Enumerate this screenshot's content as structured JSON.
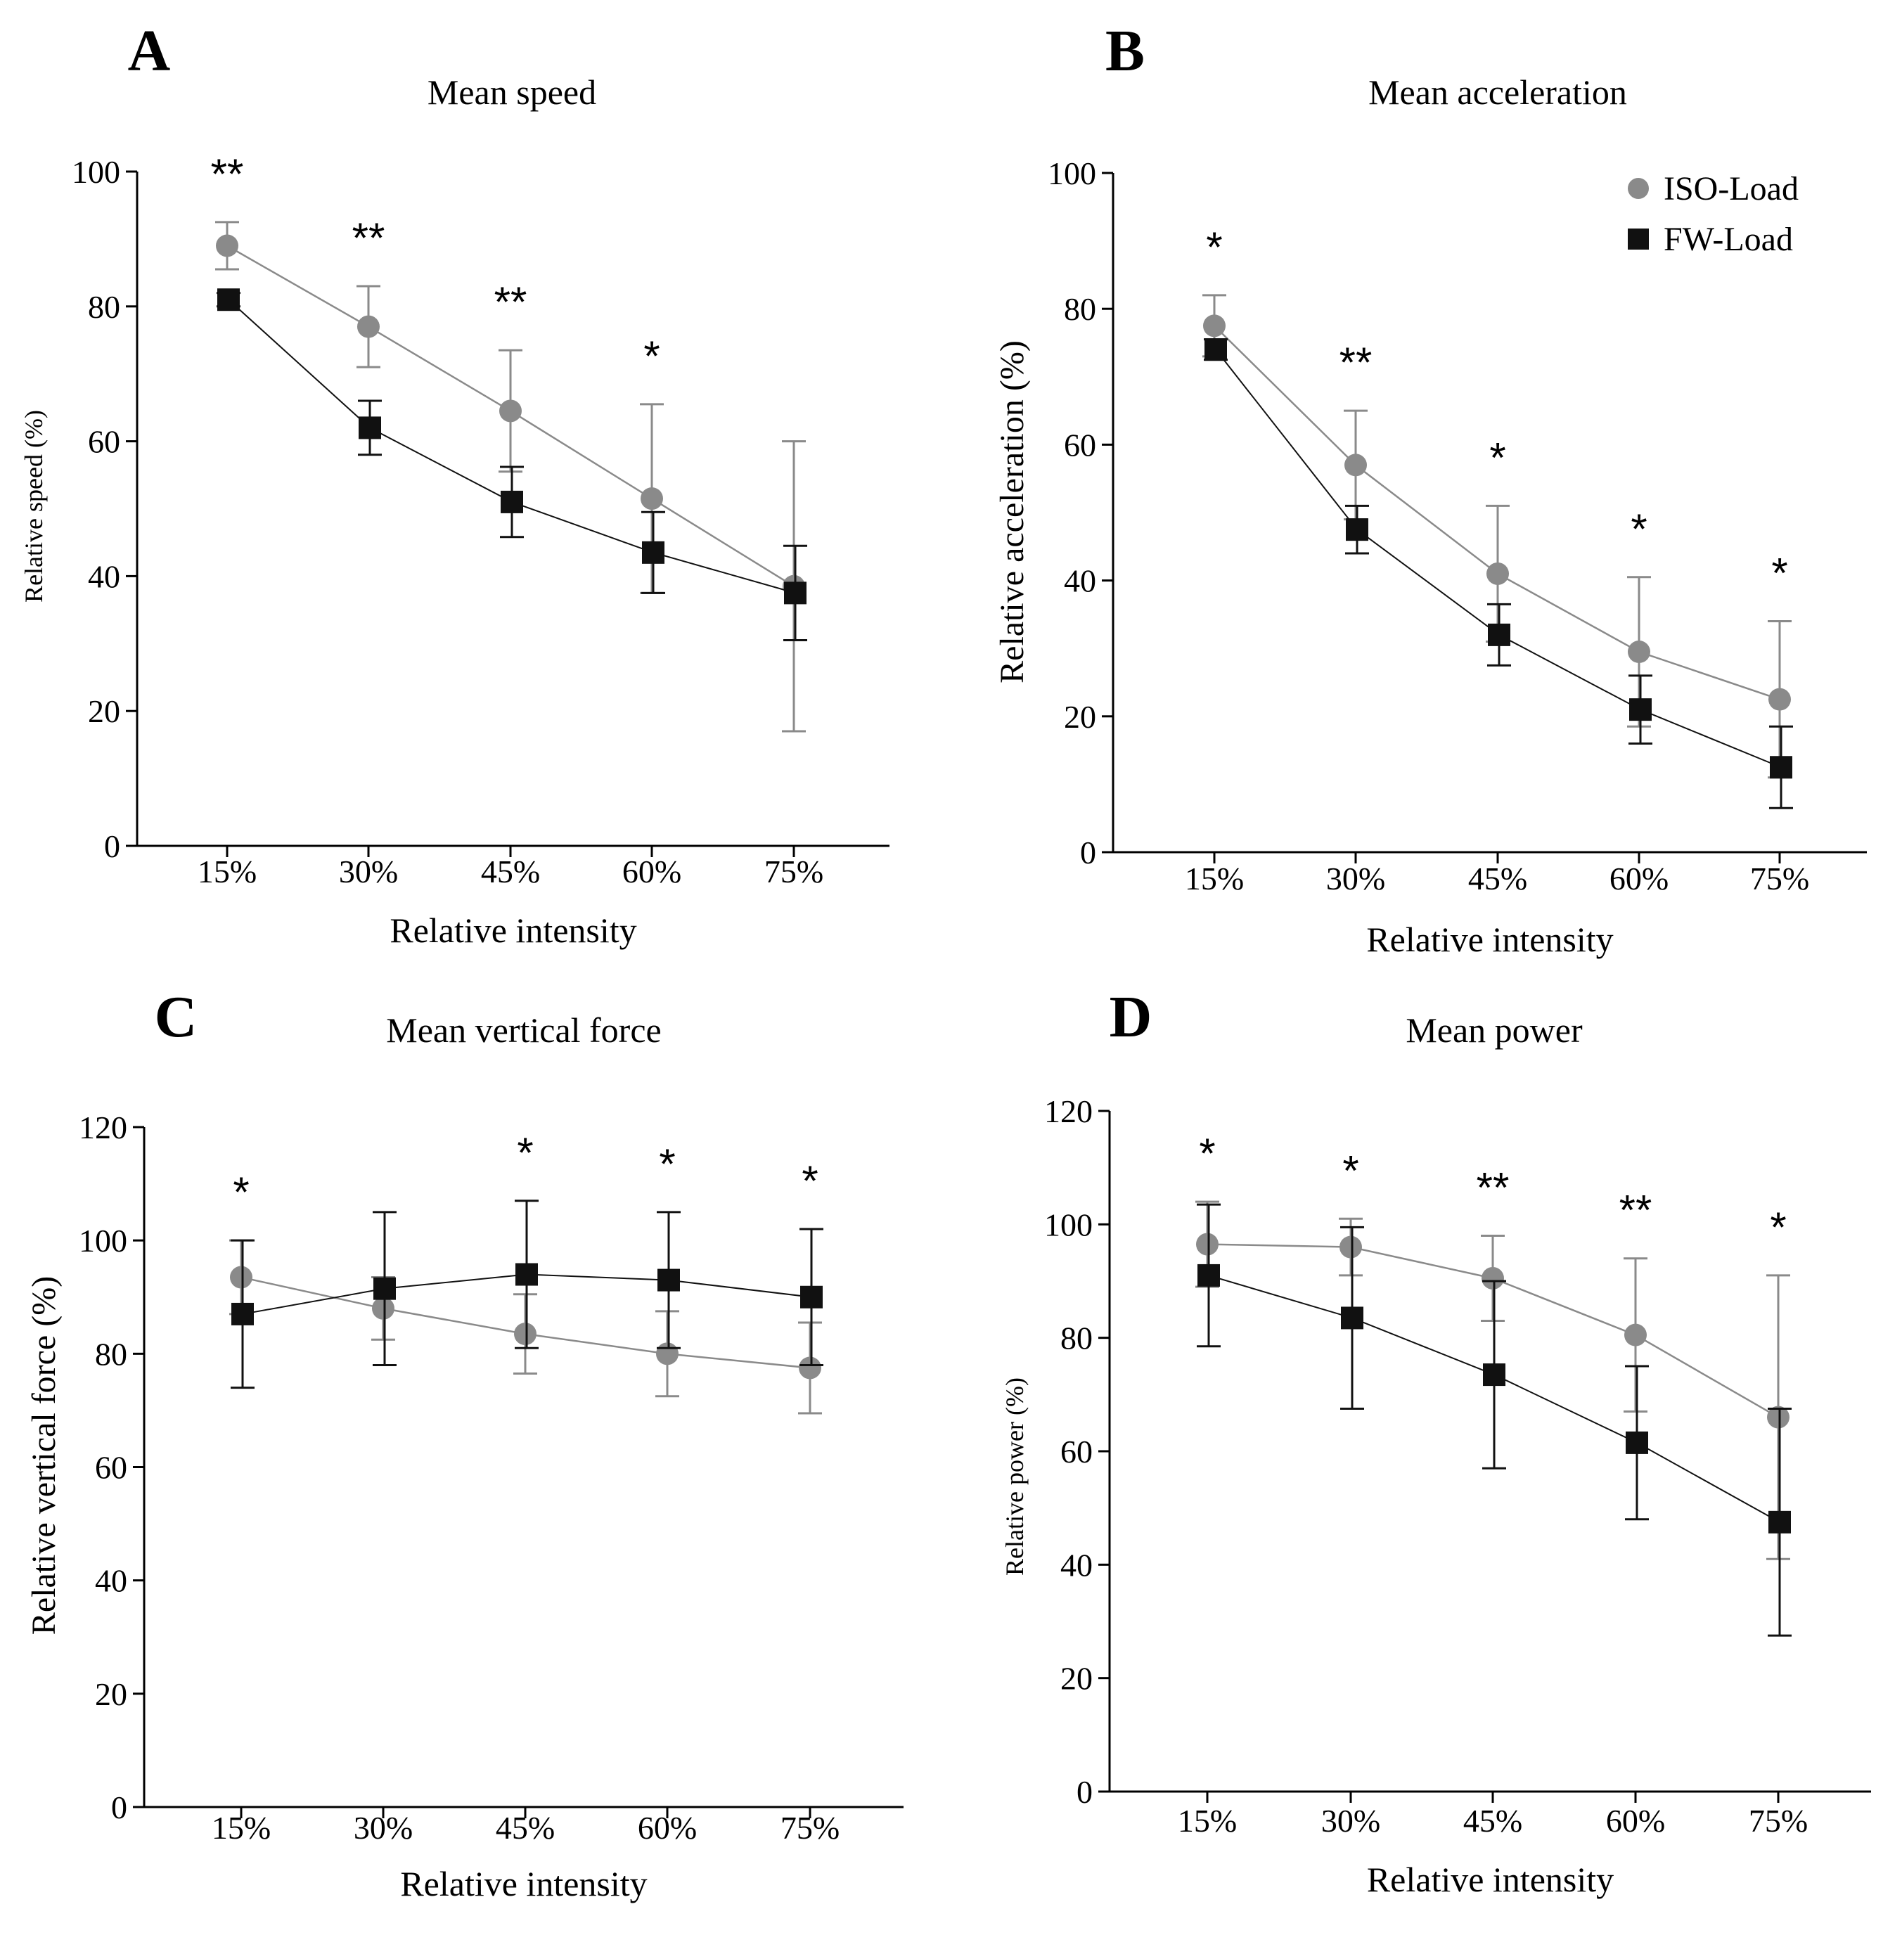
{
  "figure": {
    "legend": {
      "items": [
        "ISO-Load",
        "FW-Load"
      ]
    },
    "colors": {
      "iso": "#8a8a8a",
      "fw": "#111111",
      "axis": "#000000"
    }
  },
  "chart_data": [
    {
      "panel": "A",
      "type": "line",
      "title": "Mean speed",
      "xlabel": "Relative intensity",
      "ylabel": "Relative speed (%)",
      "categories": [
        "15%",
        "30%",
        "45%",
        "60%",
        "75%"
      ],
      "ylim": [
        0,
        100
      ],
      "yticks": [
        0,
        20,
        40,
        60,
        80,
        100
      ],
      "series": [
        {
          "name": "ISO-Load",
          "values": [
            89,
            77,
            64.5,
            51.5,
            38.5
          ],
          "err": [
            3.5,
            6,
            9,
            14,
            21.5
          ]
        },
        {
          "name": "FW-Load",
          "values": [
            81,
            62,
            51,
            43.5,
            37.5
          ],
          "err": [
            1,
            4,
            5.2,
            6,
            7
          ]
        }
      ],
      "significance": [
        "**",
        "**",
        "**",
        "*",
        ""
      ],
      "legend": false
    },
    {
      "panel": "B",
      "type": "line",
      "title": "Mean acceleration",
      "xlabel": "Relative intensity",
      "ylabel": "Relative acceleration (%)",
      "categories": [
        "15%",
        "30%",
        "45%",
        "60%",
        "75%"
      ],
      "ylim": [
        0,
        100
      ],
      "yticks": [
        0,
        20,
        40,
        60,
        80,
        100
      ],
      "series": [
        {
          "name": "ISO-Load",
          "values": [
            77.5,
            57,
            41,
            29.5,
            22.5
          ],
          "err": [
            4.5,
            8,
            10,
            11,
            11.5
          ]
        },
        {
          "name": "FW-Load",
          "values": [
            74,
            47.5,
            32,
            21,
            12.5
          ],
          "err": [
            1.5,
            3.5,
            4.5,
            5,
            6
          ]
        }
      ],
      "significance": [
        "*",
        "**",
        "*",
        "*",
        "*"
      ],
      "legend": true
    },
    {
      "panel": "C",
      "type": "line",
      "title": "Mean vertical force",
      "xlabel": "Relative intensity",
      "ylabel": "Relative vertical force (%)",
      "categories": [
        "15%",
        "30%",
        "45%",
        "60%",
        "75%"
      ],
      "ylim": [
        0,
        120
      ],
      "yticks": [
        0,
        20,
        40,
        60,
        80,
        100,
        120
      ],
      "series": [
        {
          "name": "ISO-Load",
          "values": [
            93.5,
            88,
            83.5,
            80,
            77.5
          ],
          "err": [
            6.5,
            5.5,
            7,
            7.5,
            8
          ]
        },
        {
          "name": "FW-Load",
          "values": [
            87,
            91.5,
            94,
            93,
            90
          ],
          "err": [
            13,
            13.5,
            13,
            12,
            12
          ]
        }
      ],
      "significance": [
        "*",
        "",
        "*",
        "*",
        "*"
      ],
      "legend": false
    },
    {
      "panel": "D",
      "type": "line",
      "title": "Mean power",
      "xlabel": "Relative intensity",
      "ylabel": "Relative power (%)",
      "categories": [
        "15%",
        "30%",
        "45%",
        "60%",
        "75%"
      ],
      "ylim": [
        0,
        120
      ],
      "yticks": [
        0,
        20,
        40,
        60,
        80,
        100,
        120
      ],
      "series": [
        {
          "name": "ISO-Load",
          "values": [
            96.5,
            96,
            90.5,
            80.5,
            66
          ],
          "err": [
            7.5,
            5,
            7.5,
            13.5,
            25
          ]
        },
        {
          "name": "FW-Load",
          "values": [
            91,
            83.5,
            73.5,
            61.5,
            47.5
          ],
          "err": [
            12.5,
            16,
            16.5,
            13.5,
            20
          ]
        }
      ],
      "significance": [
        "*",
        "*",
        "**",
        "**",
        "*"
      ],
      "legend": false
    }
  ]
}
